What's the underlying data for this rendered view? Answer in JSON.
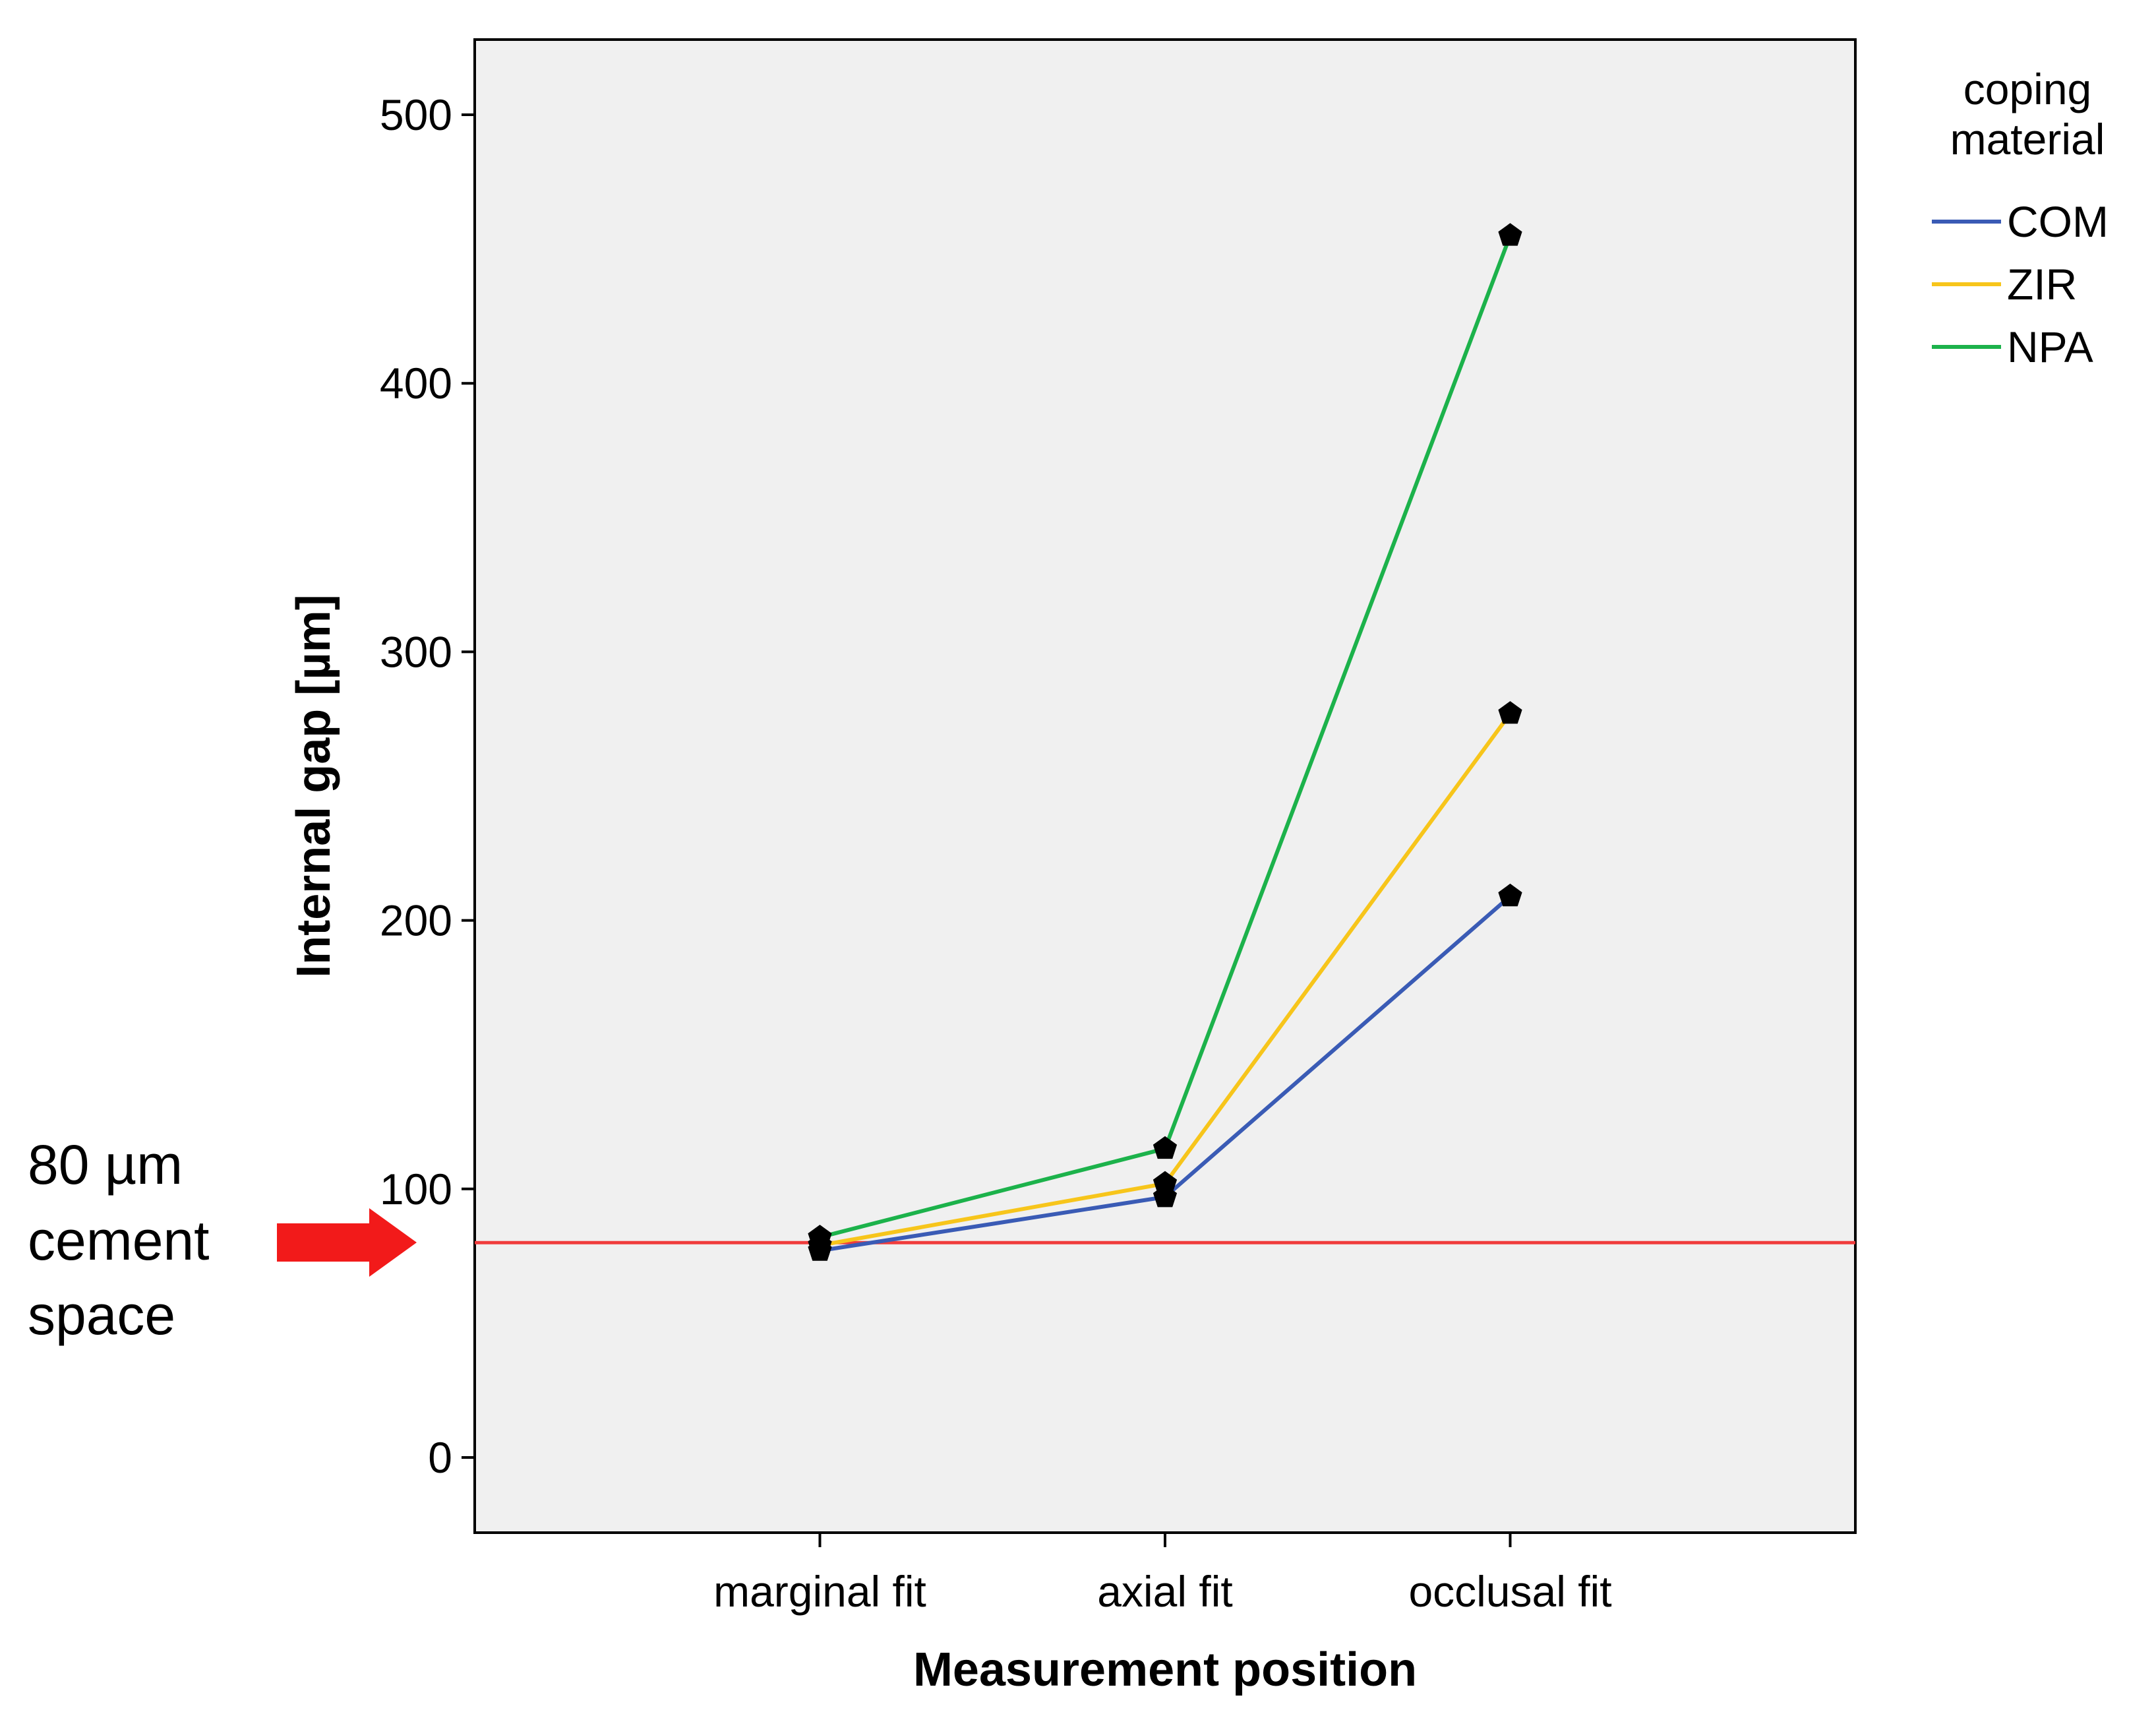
{
  "chart_data": {
    "type": "line",
    "categories": [
      "marginal fit",
      "axial fit",
      "occlusal fit"
    ],
    "series": [
      {
        "name": "COM",
        "color": "#3A5BB5",
        "values": [
          77,
          97,
          209
        ]
      },
      {
        "name": "ZIR",
        "color": "#F7C51B",
        "values": [
          79,
          102,
          277
        ]
      },
      {
        "name": "NPA",
        "color": "#1CB24B",
        "values": [
          82,
          115,
          455
        ]
      }
    ],
    "marker": "pentagon",
    "marker_color": "#000000",
    "xlabel": "Measurement position",
    "ylabel": "Internal gap [µm]",
    "ylim": [
      -28,
      528
    ],
    "yticks": [
      0,
      100,
      200,
      300,
      400,
      500
    ],
    "grid": false,
    "plot_background": "#F0F0F0",
    "legend": {
      "title_lines": [
        "coping",
        "material"
      ],
      "placement": "top-right-outside"
    },
    "reference_line": {
      "value": 80,
      "color": "#F03C3C"
    },
    "annotation": {
      "lines": [
        "80 µm",
        "cement",
        "space"
      ],
      "arrow_color": "#F21A1A"
    }
  }
}
